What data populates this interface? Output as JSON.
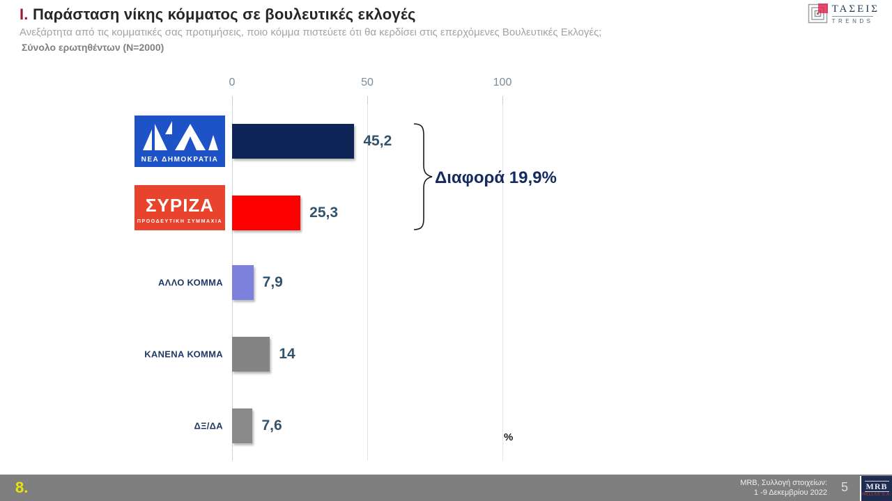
{
  "header": {
    "title_prefix": "I.",
    "title": "Παράσταση νίκης κόμματος σε βουλευτικές εκλογές",
    "subtitle": "Ανεξάρτητα από τις κομματικές σας προτιμήσεις, ποιο κόμμα πιστεύετε ότι θα κερδίσει στις επερχόμενες Βουλευτικές Εκλογές;",
    "sample": "Σύνολο ερωτηθέντων (N=2000)"
  },
  "brand": {
    "name": "ΤΑΣΕΙΣ",
    "sub": "TRENDS"
  },
  "chart_data": {
    "type": "bar",
    "orientation": "horizontal",
    "categories": [
      "ΝΕΑ ΔΗΜΟΚΡΑΤΙΑ",
      "ΣΥΡΙΖΑ ΠΡΟΟΔΕΥΤΙΚΗ ΣΥΜΜΑΧΙΑ",
      "ΑΛΛΟ ΚΟΜΜΑ",
      "ΚΑΝΕΝΑ ΚΟΜΜΑ",
      "ΔΞ/ΔΑ"
    ],
    "values": [
      45.2,
      25.3,
      7.9,
      14,
      7.6
    ],
    "value_labels": [
      "45,2",
      "25,3",
      "7,9",
      "14",
      "7,6"
    ],
    "bar_colors": [
      "#0e2356",
      "#fe0000",
      "#7e81dc",
      "#848484",
      "#8a8a8a"
    ],
    "xlim": [
      0,
      100
    ],
    "x_ticks": [
      "0",
      "50",
      "100"
    ],
    "grid": true,
    "unit": "%",
    "annotation": "Διαφορά 19,9%"
  },
  "logos": {
    "nd": {
      "caption": "ΝΕΑ ΔΗΜΟΚΡΑΤΙΑ",
      "bg": "#1e53c8"
    },
    "syriza": {
      "line1": "ΣΥΡΙΖΑ",
      "line2": "ΠΡΟΟΔΕΥΤΙΚΗ ΣΥΜΜΑΧΙΑ",
      "bg": "#e8432d"
    }
  },
  "footer": {
    "page_marker": "8.",
    "source_line1": "MRB, Συλλογή στοιχείων:",
    "source_line2": "1 -9 Δεκεμβρίου 2022",
    "page_number": "5",
    "logo_text": "MRB",
    "logo_sub": "HELLAS S.A."
  }
}
